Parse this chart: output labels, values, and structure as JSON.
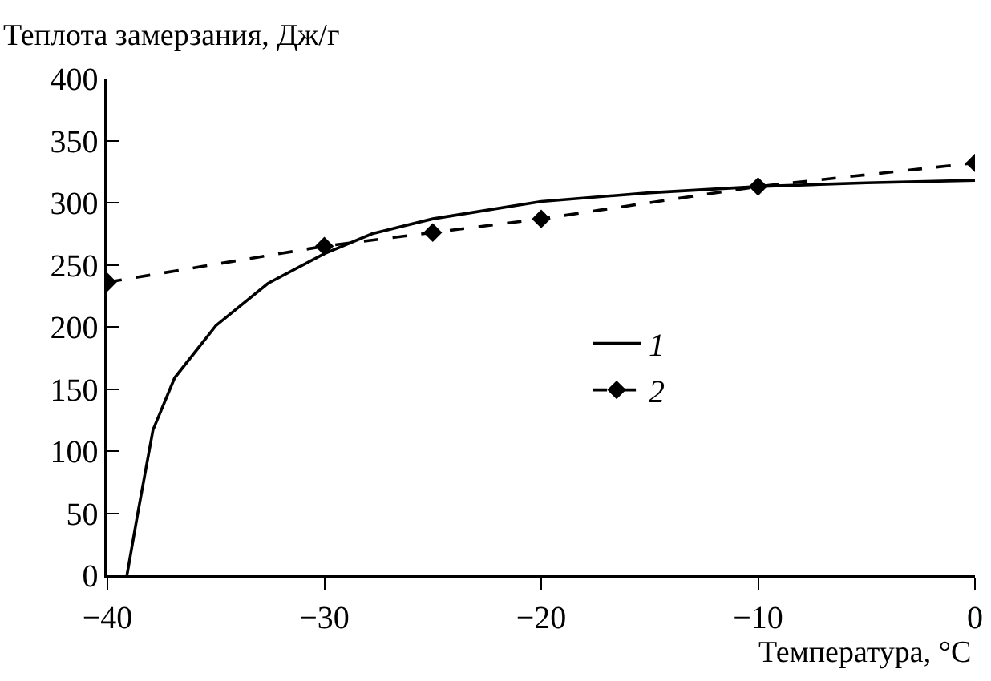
{
  "chart_data": {
    "type": "line",
    "xlabel": "Температура, °C",
    "ylabel": "Теплота замерзания, Дж/г",
    "xlim": [
      -40,
      0
    ],
    "xticks": [
      -40,
      -30,
      -20,
      -10,
      0
    ],
    "ylim": [
      0,
      400
    ],
    "yticks": [
      0,
      50,
      100,
      150,
      200,
      250,
      300,
      350,
      400
    ],
    "grid": false,
    "legend": "center right",
    "series": [
      {
        "name": "1",
        "color": "#000000",
        "line_style": "solid",
        "marker": "none",
        "x": [
          -39.1,
          -38.6,
          -37.9,
          -36.9,
          -35,
          -32.6,
          -30,
          -27.8,
          -25,
          -20,
          -15,
          -10,
          -5,
          0
        ],
        "values": [
          0,
          50,
          117,
          159,
          201,
          235,
          259,
          275,
          287,
          301,
          308,
          313,
          316,
          318
        ]
      },
      {
        "name": "2",
        "color": "#000000",
        "line_style": "dashed",
        "marker": "diamond",
        "x": [
          -40,
          -30,
          -25,
          -20,
          -10,
          0
        ],
        "values": [
          236,
          265,
          276,
          287,
          313,
          332
        ]
      }
    ]
  }
}
